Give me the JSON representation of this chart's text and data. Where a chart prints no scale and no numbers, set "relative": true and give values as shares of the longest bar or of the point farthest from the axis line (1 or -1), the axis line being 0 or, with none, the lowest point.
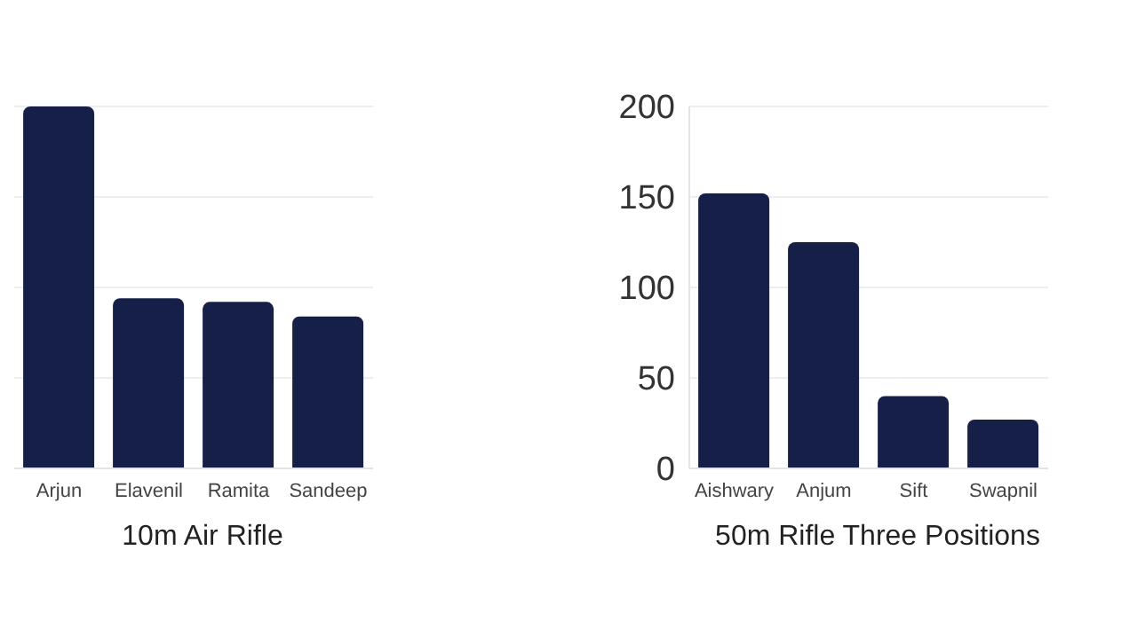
{
  "chart_data": [
    {
      "type": "bar",
      "title": "10m Air Rifle",
      "categories": [
        "Arjun",
        "Elavenil",
        "Ramita",
        "Sandeep"
      ],
      "relative": true,
      "grid": "y",
      "series": [
        {
          "color": "#151f48",
          "values": [
            1,
            0.47,
            0.46,
            0.42
          ]
        }
      ]
    },
    {
      "type": "bar",
      "title": "50m Rifle Three Positions",
      "categories": [
        "Aishwary",
        "Anjum",
        "Sift",
        "Swapnil"
      ],
      "ylim": [
        0,
        200
      ],
      "yticks": [
        0,
        50,
        100,
        150,
        200
      ],
      "grid": "y",
      "series": [
        {
          "color": "#151f48",
          "values": [
            152,
            125,
            40,
            27
          ]
        }
      ]
    }
  ]
}
